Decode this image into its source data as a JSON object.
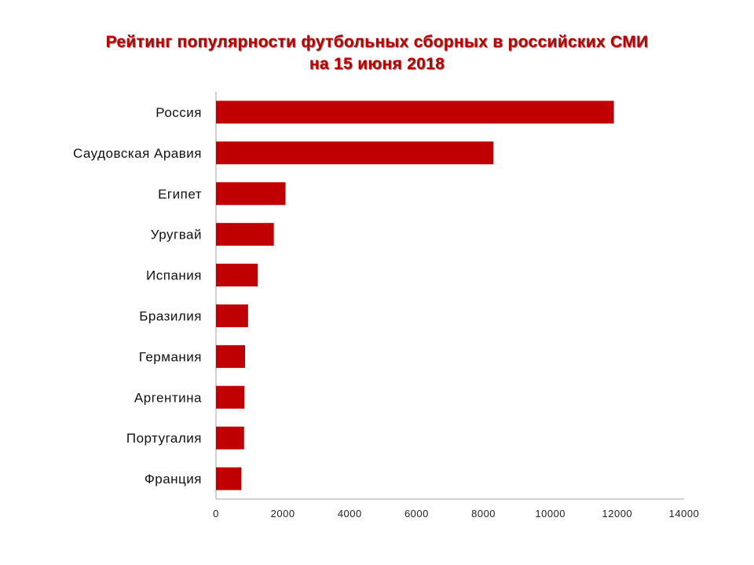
{
  "chart_data": {
    "type": "bar",
    "orientation": "horizontal",
    "title_lines": [
      "Рейтинг популярности футбольных сборных  в российских СМИ",
      "на 15 июня 2018"
    ],
    "categories": [
      "Россия",
      "Саудовская Аравия",
      "Египет",
      "Уругвай",
      "Испания",
      "Бразилия",
      "Германия",
      "Аргентина",
      "Португалия",
      "Франция"
    ],
    "values": [
      11900,
      8300,
      2080,
      1730,
      1250,
      960,
      870,
      850,
      840,
      760
    ],
    "xlim": [
      0,
      14000
    ],
    "xticks": [
      "0",
      "2000",
      "4000",
      "6000",
      "8000",
      "10000",
      "12000",
      "14000"
    ],
    "grid": false,
    "bar_color": "#c00000",
    "axis_color": "#a6a6a6"
  }
}
